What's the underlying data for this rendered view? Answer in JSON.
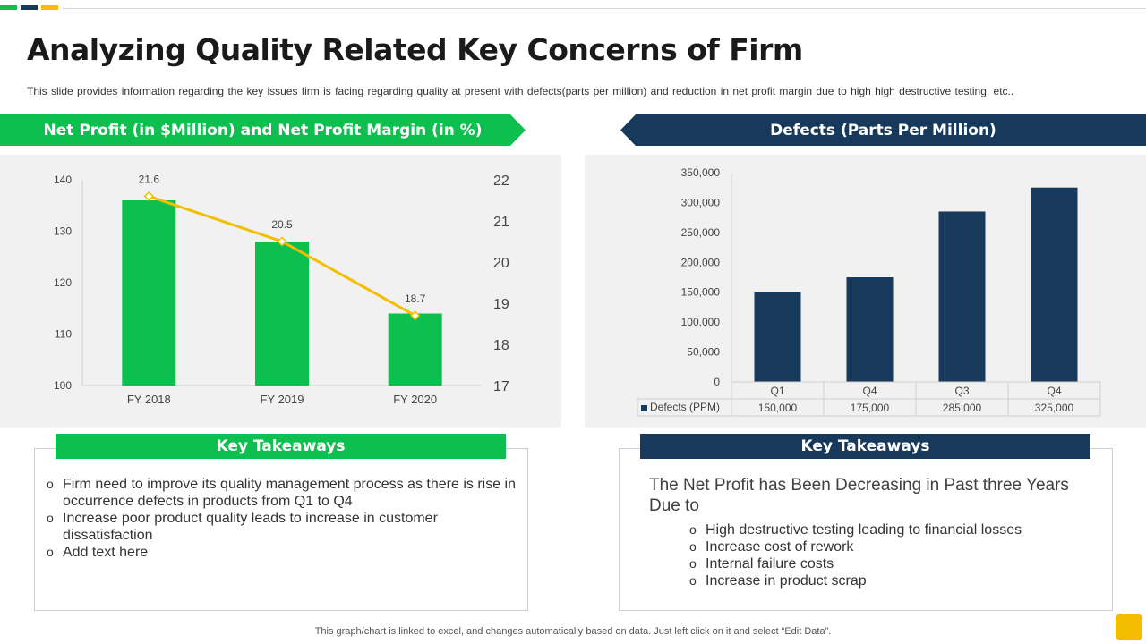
{
  "colors": {
    "green": "#0cbf4e",
    "navy": "#173a5c",
    "yellow": "#f5bd00",
    "panel_bg": "#f1f1f1"
  },
  "title": "Analyzing Quality Related Key Concerns of Firm",
  "subtitle": "This slide provides information regarding the key issues firm is facing regarding quality at present with defects(parts per million) and reduction in net profit margin due to high high destructive testing, etc..",
  "left_banner": "Net Profit (in $Million) and Net Profit Margin (in %)",
  "right_banner": "Defects (Parts Per Million)",
  "left_takeaways": {
    "header": "Key Takeaways",
    "items": [
      "Firm need to improve its quality management process as there is rise in occurrence defects in products from Q1 to Q4",
      "Increase poor product quality leads to increase in customer dissatisfaction",
      "Add text here"
    ]
  },
  "right_takeaways": {
    "header": "Key Takeaways",
    "lead": "The Net Profit has Been Decreasing in Past three Years Due to",
    "items": [
      "High destructive testing leading to financial losses",
      "Increase cost of rework",
      "Internal  failure costs",
      "Increase  in product scrap"
    ]
  },
  "bullet_symbol": "o",
  "footer": "This graph/chart is linked to excel,  and changes automatically based on data. Just left click on it and select “Edit Data”.",
  "chart_data": [
    {
      "type": "bar",
      "categories": [
        "FY 2018",
        "FY 2019",
        "FY 2020"
      ],
      "series": [
        {
          "values": [
            136,
            128,
            114
          ],
          "color": "#0cbf4e",
          "axis": "left"
        },
        {
          "type": "line",
          "values": [
            21.6,
            20.5,
            18.7
          ],
          "labels": [
            "21.6",
            "20.5",
            "18.7"
          ],
          "color": "#f5bd00",
          "axis": "right"
        }
      ],
      "ylim": [
        100,
        140
      ],
      "y_ticks": [
        100,
        110,
        120,
        130,
        140
      ],
      "y2lim": [
        17,
        22
      ],
      "y2_ticks": [
        17,
        18,
        19,
        20,
        21,
        22
      ],
      "grid": false
    },
    {
      "type": "bar",
      "categories": [
        "Q1",
        "Q4",
        "Q3",
        "Q4"
      ],
      "series": [
        {
          "name": "Defects (PPM)",
          "values": [
            150000,
            175000,
            285000,
            325000
          ],
          "color": "#173a5c"
        }
      ],
      "table_values": [
        "150,000",
        "175,000",
        "285,000",
        "325,000"
      ],
      "ylim": [
        0,
        350000
      ],
      "y_ticks": [
        0,
        50000,
        100000,
        150000,
        200000,
        250000,
        300000,
        350000
      ],
      "y_tick_labels": [
        "0",
        "50,000",
        "100,000",
        "150,000",
        "200,000",
        "250,000",
        "300,000",
        "350,000"
      ],
      "grid": false,
      "data_table": true
    }
  ]
}
